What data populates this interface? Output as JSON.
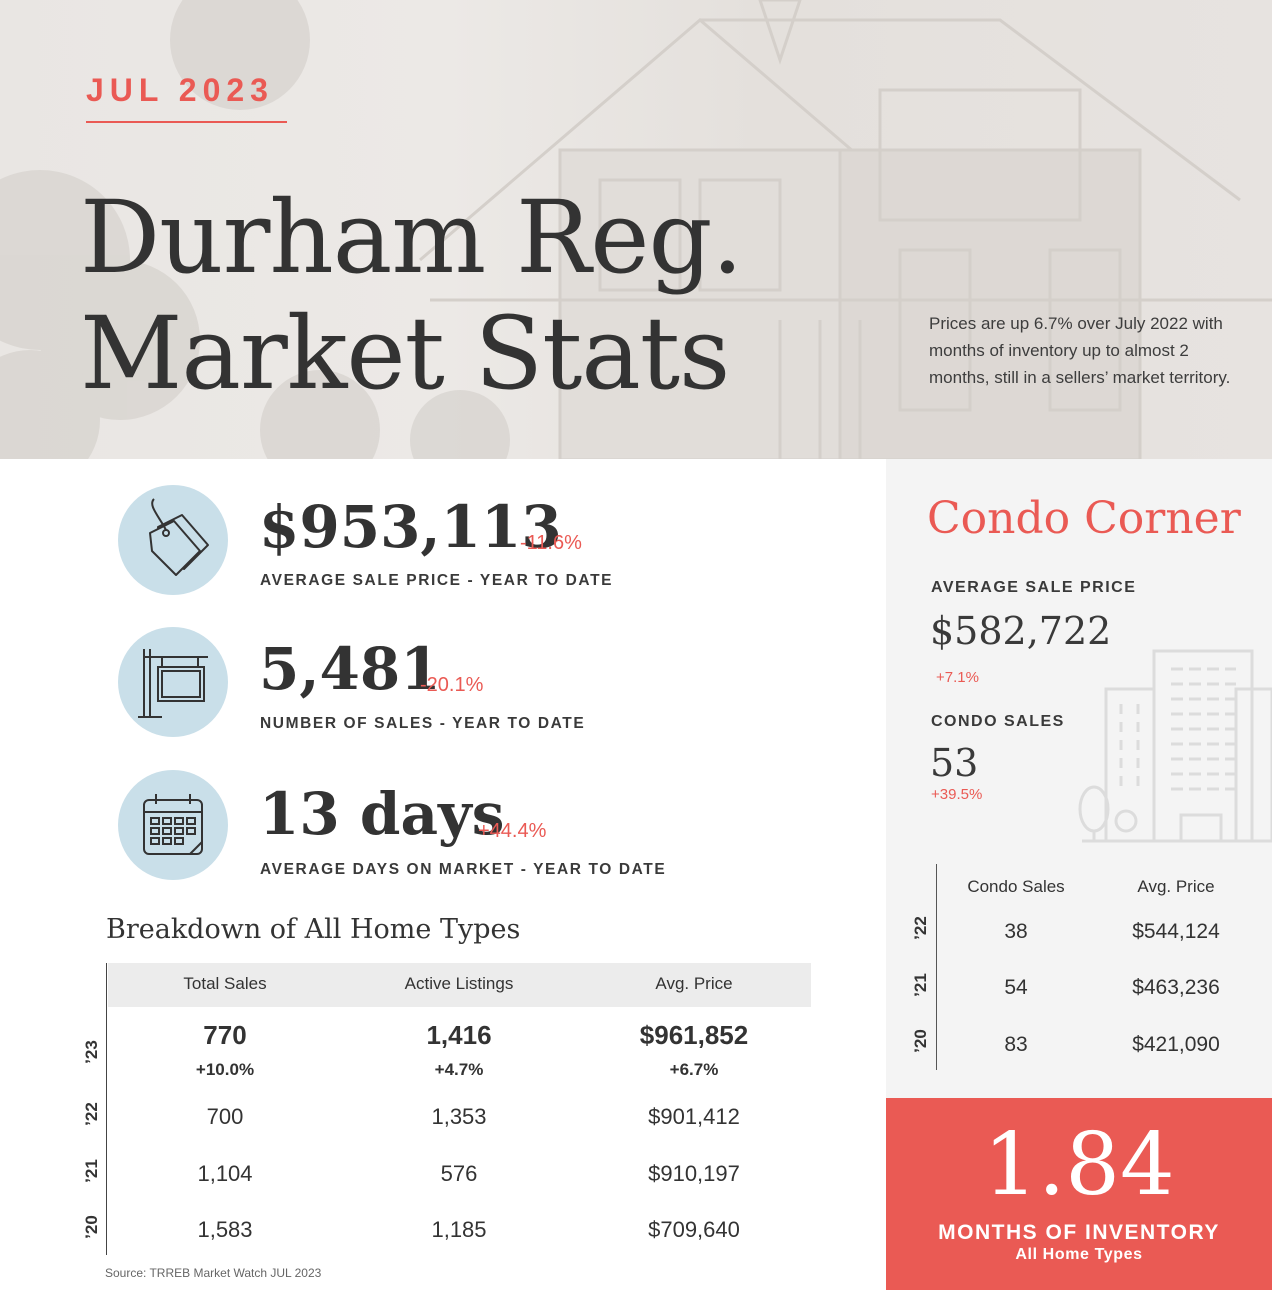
{
  "hero": {
    "month": "JUL 2023",
    "title_line1": "Durham Reg.",
    "title_line2": "Market Stats",
    "note": "Prices are up 6.7% over July 2022 with months of inventory up to almost 2 months, still in a sellers’ market territory."
  },
  "stats": [
    {
      "value": "$953,113",
      "change": "-11.6%",
      "label": "AVERAGE SALE PRICE - YEAR TO DATE",
      "icon": "price-tag-icon"
    },
    {
      "value": "5,481",
      "change": "-20.1%",
      "label": "NUMBER OF SALES - YEAR TO DATE",
      "icon": "for-sale-sign-icon"
    },
    {
      "value": "13 days",
      "change": "+44.4%",
      "label": "AVERAGE DAYS ON MARKET - YEAR TO DATE",
      "icon": "calendar-icon"
    }
  ],
  "breakdown": {
    "title": "Breakdown of All Home Types",
    "headers": [
      "Total Sales",
      "Active Listings",
      "Avg. Price"
    ],
    "current": {
      "year": "’23",
      "values": [
        "770",
        "1,416",
        "$961,852"
      ],
      "changes": [
        "+10.0%",
        "+4.7%",
        "+6.7%"
      ]
    },
    "rows": [
      {
        "year": "’22",
        "values": [
          "700",
          "1,353",
          "$901,412"
        ]
      },
      {
        "year": "’21",
        "values": [
          "1,104",
          "576",
          "$910,197"
        ]
      },
      {
        "year": "’20",
        "values": [
          "1,583",
          "1,185",
          "$709,640"
        ]
      }
    ],
    "source": "Source: TRREB Market Watch JUL 2023"
  },
  "condo": {
    "title": "Condo Corner",
    "avg_price_label": "AVERAGE SALE PRICE",
    "avg_price_value": "$582,722",
    "avg_price_change": "+7.1%",
    "sales_label": "CONDO SALES",
    "sales_value": "53",
    "sales_change": "+39.5%",
    "headers": [
      "Condo Sales",
      "Avg. Price"
    ],
    "rows": [
      {
        "year": "’22",
        "values": [
          "38",
          "$544,124"
        ]
      },
      {
        "year": "’21",
        "values": [
          "54",
          "$463,236"
        ]
      },
      {
        "year": "’20",
        "values": [
          "83",
          "$421,090"
        ]
      }
    ]
  },
  "inventory": {
    "value": "1.84",
    "label": "MONTHS OF INVENTORY",
    "sublabel": "All Home Types"
  },
  "colors": {
    "accent": "#ea5a54",
    "icon_circle": "#c9dfe9",
    "text": "#333333"
  }
}
